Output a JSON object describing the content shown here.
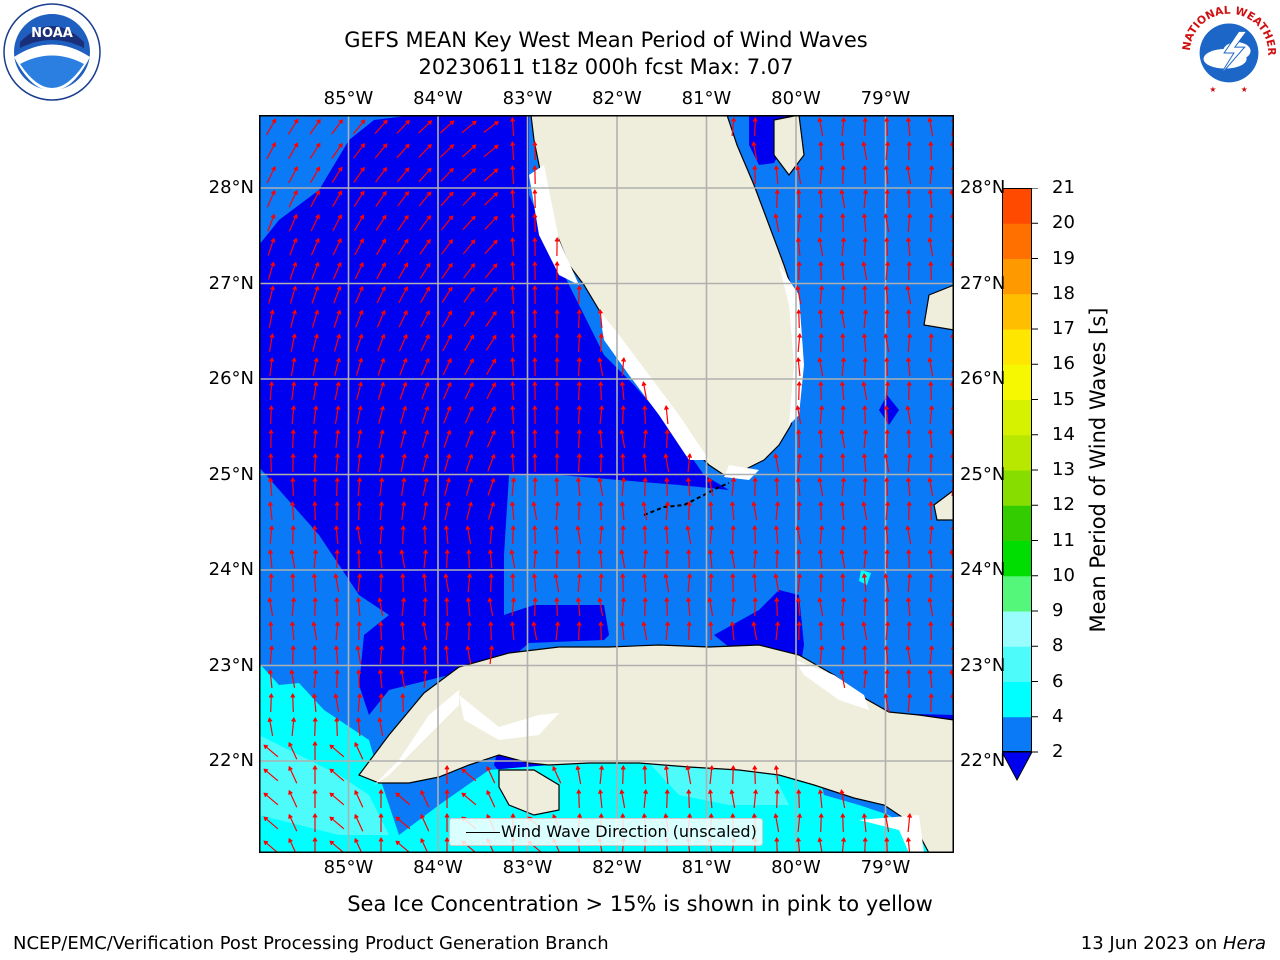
{
  "title": {
    "line1": "GEFS MEAN Key West Mean Period of Wind Waves",
    "line2": "20230611 t18z 000h fcst   Max: 7.07"
  },
  "map": {
    "lon_labels": [
      "85°W",
      "84°W",
      "83°W",
      "82°W",
      "81°W",
      "80°W",
      "79°W"
    ],
    "lat_labels": [
      "28°N",
      "27°N",
      "26°N",
      "25°N",
      "24°N",
      "23°N",
      "22°N"
    ],
    "colors": {
      "level_2_4": "#0a7af6",
      "below_2": "#0000f0",
      "level_4_6": "#00ffff",
      "level_6_8": "#4dfbfb",
      "level_8_9": "#9afdfd",
      "land": "#efeedc",
      "arrow": "#ff0000",
      "grid": "#b0b0b0"
    },
    "legend_label": "Wind Wave Direction (unscaled)"
  },
  "colorbar": {
    "label": "Mean Period of Wind Waves [s]",
    "ticks": [
      "2",
      "4",
      "6",
      "8",
      "9",
      "10",
      "11",
      "12",
      "13",
      "14",
      "15",
      "16",
      "17",
      "18",
      "19",
      "20",
      "21"
    ],
    "colors": [
      "#0a7af6",
      "#00ffff",
      "#4dfbfb",
      "#9afdfd",
      "#54f77a",
      "#00dd00",
      "#33cc00",
      "#88dd00",
      "#b8e800",
      "#d7f200",
      "#f5f800",
      "#ffe600",
      "#ffbf00",
      "#ff9900",
      "#ff7000",
      "#ff4a00",
      "#ff1e00"
    ],
    "extend_color": "#0000f0"
  },
  "note": "Sea Ice Concentration > 15% is shown in pink to yellow",
  "footer": {
    "left": "NCEP/EMC/Verification Post Processing Product Generation Branch",
    "date": "13 Jun 2023 on ",
    "host": "Hera"
  },
  "logos": {
    "noaa_text": "NOAA",
    "nws_text": "NATIONAL WEATHER SERVICE"
  }
}
